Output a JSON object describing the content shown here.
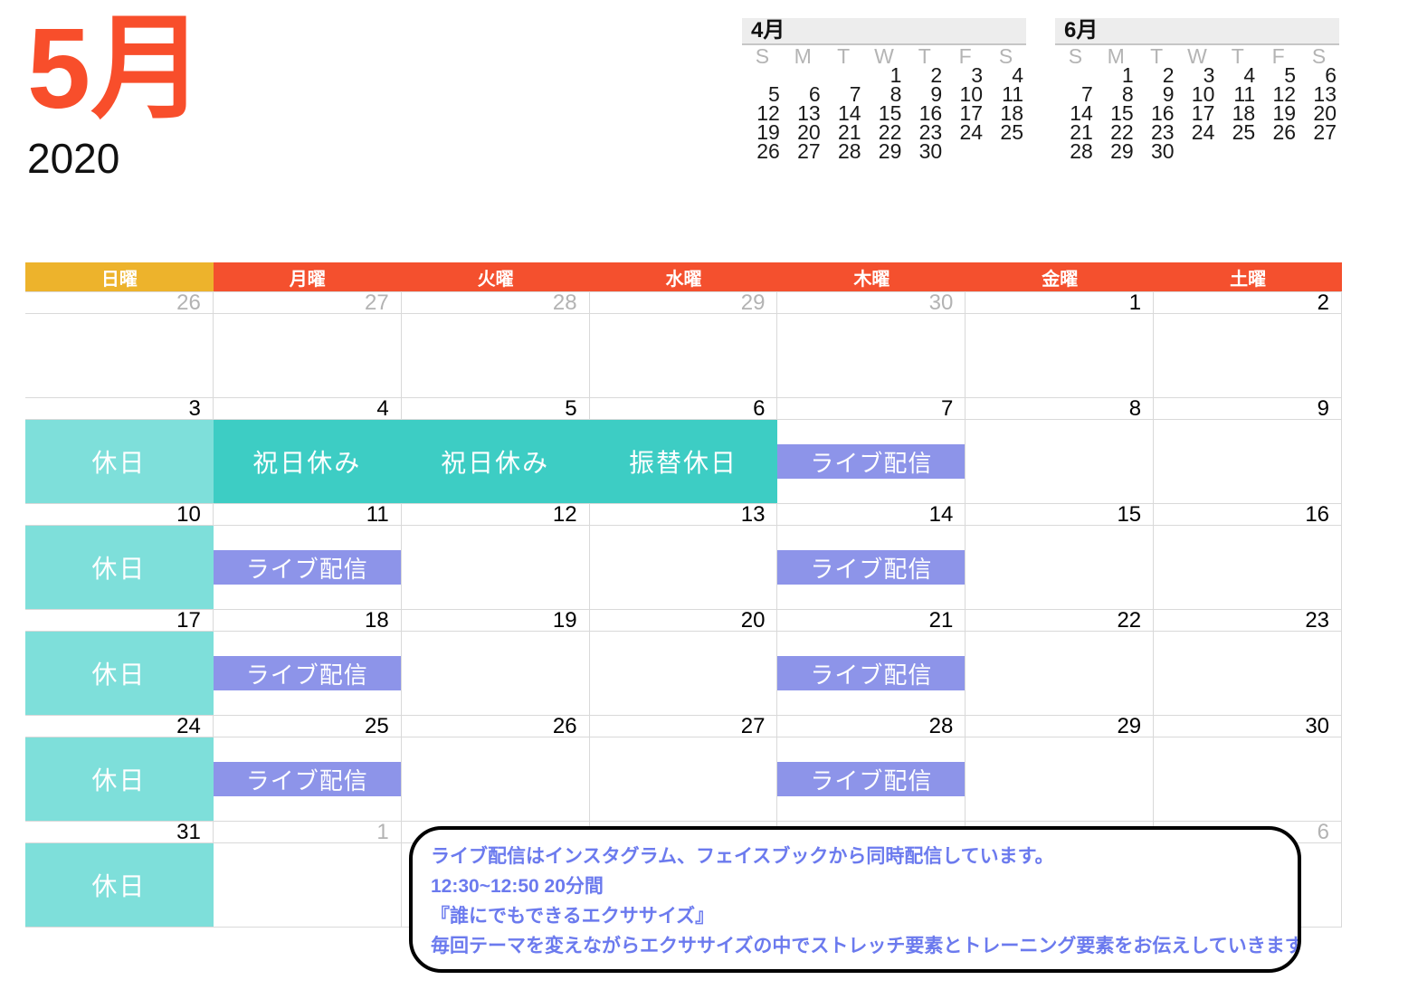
{
  "title": {
    "month": "5月",
    "year": "2020"
  },
  "colors": {
    "title_red": "#F84E2B",
    "header_red": "#F4502E",
    "header_gold": "#EDB32C",
    "holiday_light_teal": "#7EDFDA",
    "holiday_dark_teal": "#3DCDC4",
    "live_event_purple": "#8D94E9",
    "bubble_text_blue": "#6B7AEE",
    "adjacent_day_gray": "#B3B3B3",
    "grid_line": "#D9D9D9"
  },
  "mini_calendars": [
    {
      "title": "4月",
      "weekdays": [
        "S",
        "M",
        "T",
        "W",
        "T",
        "F",
        "S"
      ],
      "rows": [
        [
          "",
          "",
          "",
          "1",
          "2",
          "3",
          "4"
        ],
        [
          "5",
          "6",
          "7",
          "8",
          "9",
          "10",
          "11"
        ],
        [
          "12",
          "13",
          "14",
          "15",
          "16",
          "17",
          "18"
        ],
        [
          "19",
          "20",
          "21",
          "22",
          "23",
          "24",
          "25"
        ],
        [
          "26",
          "27",
          "28",
          "29",
          "30",
          "",
          ""
        ]
      ]
    },
    {
      "title": "6月",
      "weekdays": [
        "S",
        "M",
        "T",
        "W",
        "T",
        "F",
        "S"
      ],
      "rows": [
        [
          "",
          "1",
          "2",
          "3",
          "4",
          "5",
          "6"
        ],
        [
          "7",
          "8",
          "9",
          "10",
          "11",
          "12",
          "13"
        ],
        [
          "14",
          "15",
          "16",
          "17",
          "18",
          "19",
          "20"
        ],
        [
          "21",
          "22",
          "23",
          "24",
          "25",
          "26",
          "27"
        ],
        [
          "28",
          "29",
          "30",
          "",
          "",
          "",
          ""
        ]
      ]
    }
  ],
  "main_calendar": {
    "day_headers": [
      {
        "label": "日曜",
        "accent": "gold"
      },
      {
        "label": "月曜",
        "accent": "red"
      },
      {
        "label": "火曜",
        "accent": "red"
      },
      {
        "label": "水曜",
        "accent": "red"
      },
      {
        "label": "木曜",
        "accent": "red"
      },
      {
        "label": "金曜",
        "accent": "red"
      },
      {
        "label": "土曜",
        "accent": "red"
      }
    ],
    "weeks": [
      {
        "days": [
          {
            "num": "26",
            "adjacent": true
          },
          {
            "num": "27",
            "adjacent": true
          },
          {
            "num": "28",
            "adjacent": true
          },
          {
            "num": "29",
            "adjacent": true
          },
          {
            "num": "30",
            "adjacent": true
          },
          {
            "num": "1"
          },
          {
            "num": "2"
          }
        ]
      },
      {
        "days": [
          {
            "num": "3",
            "event": {
              "label": "休日",
              "style": "holiday-light"
            }
          },
          {
            "num": "4",
            "event": {
              "label": "祝日休み",
              "style": "holiday-dark"
            }
          },
          {
            "num": "5",
            "event": {
              "label": "祝日休み",
              "style": "holiday-dark"
            }
          },
          {
            "num": "6",
            "event": {
              "label": "振替休日",
              "style": "holiday-dark"
            }
          },
          {
            "num": "7",
            "event": {
              "label": "ライブ配信",
              "style": "live"
            }
          },
          {
            "num": "8"
          },
          {
            "num": "9"
          }
        ]
      },
      {
        "days": [
          {
            "num": "10",
            "event": {
              "label": "休日",
              "style": "holiday-light"
            }
          },
          {
            "num": "11",
            "event": {
              "label": "ライブ配信",
              "style": "live"
            }
          },
          {
            "num": "12"
          },
          {
            "num": "13"
          },
          {
            "num": "14",
            "event": {
              "label": "ライブ配信",
              "style": "live"
            }
          },
          {
            "num": "15"
          },
          {
            "num": "16"
          }
        ]
      },
      {
        "days": [
          {
            "num": "17",
            "event": {
              "label": "休日",
              "style": "holiday-light"
            }
          },
          {
            "num": "18",
            "event": {
              "label": "ライブ配信",
              "style": "live"
            }
          },
          {
            "num": "19"
          },
          {
            "num": "20"
          },
          {
            "num": "21",
            "event": {
              "label": "ライブ配信",
              "style": "live"
            }
          },
          {
            "num": "22"
          },
          {
            "num": "23"
          }
        ]
      },
      {
        "days": [
          {
            "num": "24",
            "event": {
              "label": "休日",
              "style": "holiday-light"
            }
          },
          {
            "num": "25",
            "event": {
              "label": "ライブ配信",
              "style": "live"
            }
          },
          {
            "num": "26"
          },
          {
            "num": "27"
          },
          {
            "num": "28",
            "event": {
              "label": "ライブ配信",
              "style": "live"
            }
          },
          {
            "num": "29"
          },
          {
            "num": "30"
          }
        ]
      },
      {
        "days": [
          {
            "num": "31",
            "event": {
              "label": "休日",
              "style": "holiday-light"
            }
          },
          {
            "num": "1",
            "adjacent": true
          },
          {
            "num": ""
          },
          {
            "num": ""
          },
          {
            "num": ""
          },
          {
            "num": ""
          },
          {
            "num": "6",
            "adjacent": true
          }
        ]
      }
    ]
  },
  "note_bubble": {
    "lines": [
      "ライブ配信はインスタグラム、フェイスブックから同時配信しています。",
      "12:30~12:50 20分間",
      "『誰にでもできるエクササイズ』",
      "毎回テーマを変えながらエクササイズの中でストレッチ要素とトレーニング要素をお伝えしていきます！"
    ]
  }
}
